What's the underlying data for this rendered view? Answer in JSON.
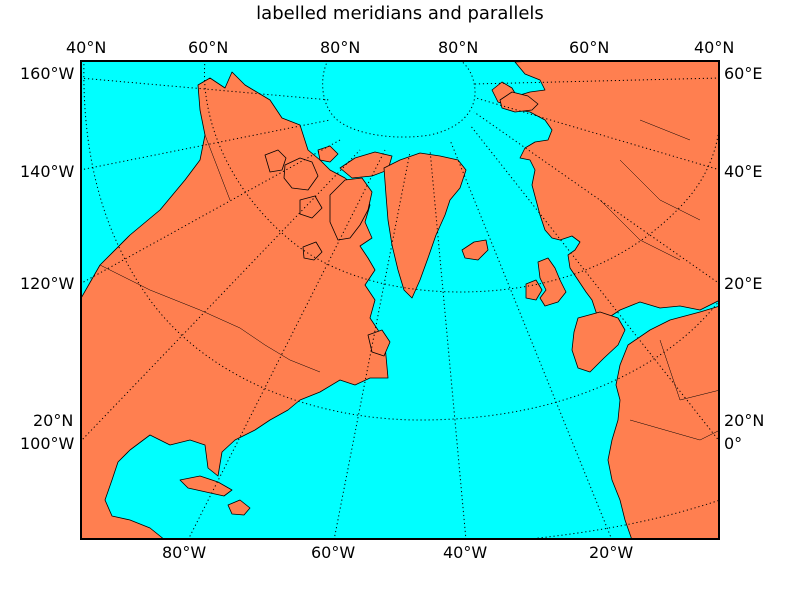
{
  "title": "labelled meridians and parallels",
  "colors": {
    "ocean": "#00ffff",
    "land": "#ff7f50",
    "coast": "#000000"
  },
  "labels": {
    "top": [
      "40°N",
      "60°N",
      "80°N",
      "80°N",
      "60°N",
      "40°N"
    ],
    "left": [
      "160°W",
      "140°W",
      "120°W",
      "20°N",
      "100°W"
    ],
    "right": [
      "60°E",
      "40°E",
      "20°E",
      "20°N",
      "0°"
    ],
    "bottom": [
      "80°W",
      "60°W",
      "40°W",
      "20°W"
    ]
  }
}
